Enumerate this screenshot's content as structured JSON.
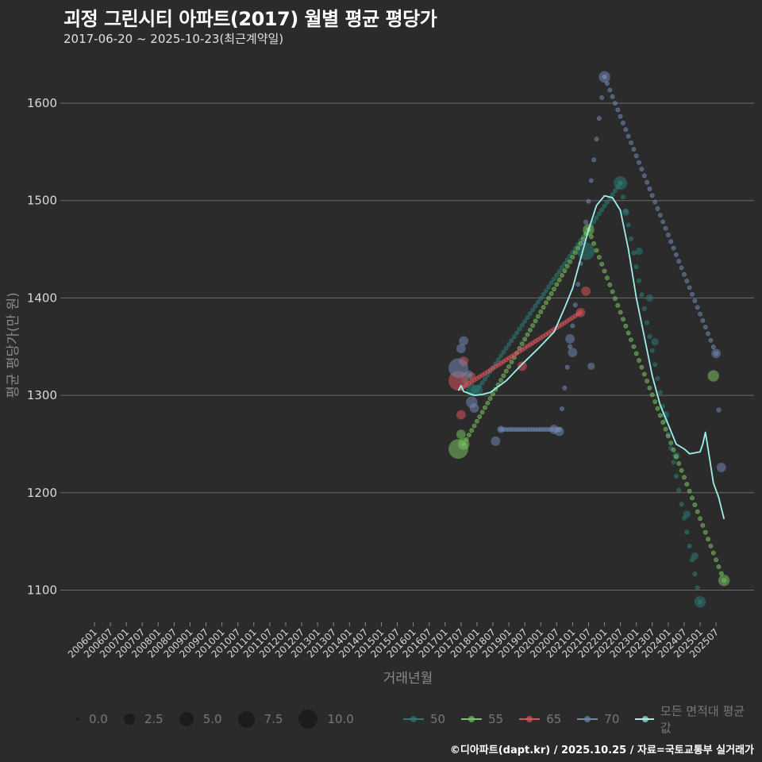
{
  "header": {
    "title": "괴정 그린시티 아파트(2017) 월별 평균 평당가",
    "subtitle": "2017-06-20 ~ 2025-10-23(최근계약일)"
  },
  "footer": {
    "credit": "©디아파트(dapt.kr) / 2025.10.25 / 자료=국토교통부 실거래가"
  },
  "legend": {
    "size": [
      {
        "label": "0.0",
        "d": 4
      },
      {
        "label": "2.5",
        "d": 14
      },
      {
        "label": "5.0",
        "d": 18
      },
      {
        "label": "7.5",
        "d": 21
      },
      {
        "label": "10.0",
        "d": 24
      }
    ],
    "lines": [
      {
        "label": "50",
        "color": "#2a7a76"
      },
      {
        "label": "55",
        "color": "#78c160"
      },
      {
        "label": "65",
        "color": "#d9535b"
      },
      {
        "label": "70",
        "color": "#6f86b0"
      },
      {
        "label": "모든 면적대 평균값",
        "color": "#9ff0ea"
      }
    ]
  },
  "chart_data": {
    "type": "scatter",
    "title": "괴정 그린시티 아파트(2017) 월별 평균 평당가",
    "subtitle": "2017-06-20 ~ 2025-10-23(최근계약일)",
    "xlabel": "거래년월",
    "ylabel": "평균 평당가(만 원)",
    "ylim": [
      1060,
      1660
    ],
    "yticks": [
      1100,
      1200,
      1300,
      1400,
      1500,
      1600
    ],
    "xticks": [
      "200601",
      "200607",
      "200701",
      "200707",
      "200801",
      "200807",
      "200901",
      "200907",
      "201001",
      "201007",
      "201101",
      "201107",
      "201201",
      "201207",
      "201301",
      "201307",
      "201401",
      "201407",
      "201501",
      "201507",
      "201601",
      "201607",
      "201701",
      "201707",
      "201801",
      "201807",
      "201901",
      "201907",
      "202001",
      "202007",
      "202101",
      "202107",
      "202201",
      "202207",
      "202301",
      "202307",
      "202401",
      "202407",
      "202501",
      "202507"
    ],
    "grid": true,
    "legend_position": "bottom",
    "size_legend": [
      "0.0",
      "2.5",
      "5.0",
      "7.5",
      "10.0"
    ],
    "series": [
      {
        "name": "50",
        "color": "#2a7a76",
        "points": [
          [
            "201709",
            1318,
            4
          ],
          [
            "201711",
            1306,
            4
          ],
          [
            "201801",
            1305,
            4
          ],
          [
            "202106",
            1448,
            7
          ],
          [
            "202207",
            1518,
            5
          ],
          [
            "202209",
            1488,
            2
          ],
          [
            "202302",
            1448,
            2
          ],
          [
            "202306",
            1400,
            2
          ],
          [
            "202308",
            1355,
            2
          ],
          [
            "202312",
            1280,
            2
          ],
          [
            "202404",
            1238,
            2
          ],
          [
            "202408",
            1178,
            2
          ],
          [
            "202411",
            1135,
            2
          ],
          [
            "202501",
            1088,
            4
          ]
        ],
        "interp": [
          [
            "201801",
            1305
          ],
          [
            "202207",
            1518
          ],
          [
            "202501",
            1088
          ]
        ]
      },
      {
        "name": "55",
        "color": "#78c160",
        "points": [
          [
            "201706",
            1245,
            8
          ],
          [
            "201707",
            1260,
            3
          ],
          [
            "201708",
            1250,
            4
          ],
          [
            "202107",
            1470,
            4
          ],
          [
            "202506",
            1320,
            4
          ],
          [
            "202510",
            1110,
            4
          ]
        ],
        "interp": [
          [
            "201708",
            1250
          ],
          [
            "202107",
            1470
          ],
          [
            "202510",
            1110
          ]
        ]
      },
      {
        "name": "65",
        "color": "#d9535b",
        "points": [
          [
            "201706",
            1315,
            8
          ],
          [
            "201707",
            1280,
            3
          ],
          [
            "201708",
            1335,
            3
          ],
          [
            "201711",
            1320,
            2
          ],
          [
            "201906",
            1330,
            3
          ],
          [
            "202104",
            1385,
            3
          ],
          [
            "202106",
            1407,
            3
          ]
        ],
        "interp": [
          [
            "201707",
            1307
          ],
          [
            "202104",
            1385
          ]
        ]
      },
      {
        "name": "70",
        "color": "#6f86b0",
        "points": [
          [
            "201706",
            1328,
            8
          ],
          [
            "201707",
            1348,
            3
          ],
          [
            "201708",
            1356,
            3
          ],
          [
            "201710",
            1322,
            2
          ],
          [
            "201711",
            1293,
            4
          ],
          [
            "201712",
            1287,
            3
          ],
          [
            "201810",
            1265,
            2
          ],
          [
            "201808",
            1253,
            3
          ],
          [
            "202006",
            1265,
            3
          ],
          [
            "202008",
            1263,
            3
          ],
          [
            "202012",
            1358,
            3
          ],
          [
            "202101",
            1344,
            3
          ],
          [
            "202108",
            1330,
            2
          ],
          [
            "202201",
            1627,
            4
          ],
          [
            "202507",
            1343,
            3
          ],
          [
            "202508",
            1285,
            1
          ],
          [
            "202509",
            1226,
            3
          ]
        ],
        "interp": [
          [
            "201810",
            1265
          ],
          [
            "202008",
            1265
          ],
          [
            "202201",
            1627
          ],
          [
            "202507",
            1343
          ]
        ]
      }
    ],
    "average_line": {
      "name": "모든 면적대 평균값",
      "color": "#9ff0ea",
      "x": [
        "201706",
        "201707",
        "201708",
        "201710",
        "201712",
        "201803",
        "201806",
        "201812",
        "201906",
        "201912",
        "202006",
        "202010",
        "202101",
        "202104",
        "202107",
        "202110",
        "202201",
        "202204",
        "202207",
        "202210",
        "202301",
        "202304",
        "202307",
        "202310",
        "202401",
        "202404",
        "202407",
        "202409",
        "202501",
        "202502",
        "202503",
        "202504",
        "202506",
        "202508",
        "202510"
      ],
      "y": [
        1305,
        1310,
        1304,
        1302,
        1300,
        1301,
        1303,
        1315,
        1332,
        1348,
        1365,
        1390,
        1410,
        1440,
        1470,
        1495,
        1505,
        1503,
        1490,
        1450,
        1400,
        1360,
        1320,
        1290,
        1270,
        1250,
        1245,
        1240,
        1242,
        1250,
        1262,
        1245,
        1210,
        1195,
        1173
      ]
    }
  }
}
